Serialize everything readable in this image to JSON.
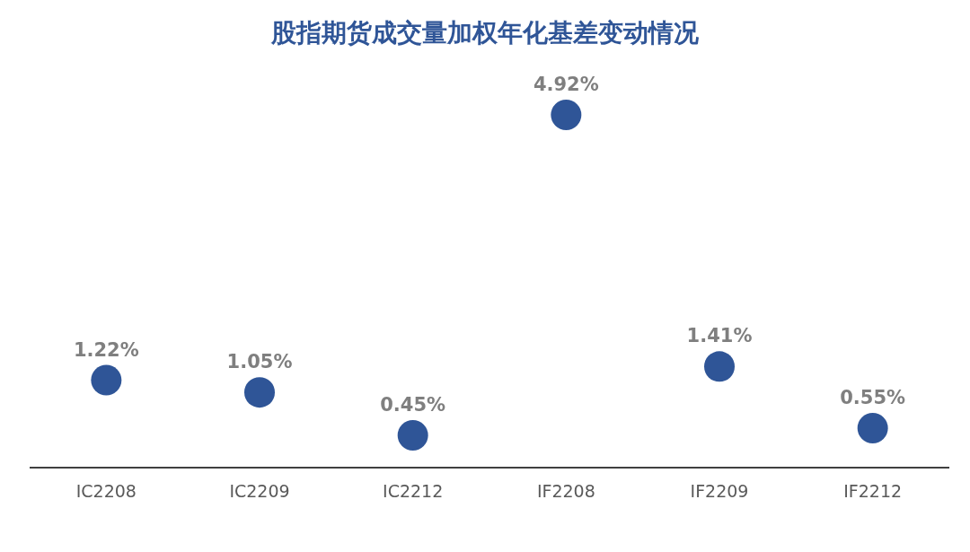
{
  "chart_data": {
    "type": "scatter",
    "title": "股指期货成交量加权年化基差变动情况",
    "categories": [
      "IC2208",
      "IC2209",
      "IC2212",
      "IF2208",
      "IF2209",
      "IF2212"
    ],
    "values": [
      1.22,
      1.05,
      0.45,
      4.92,
      1.41,
      0.55
    ],
    "value_labels": [
      "1.22%",
      "1.05%",
      "0.45%",
      "4.92%",
      "1.41%",
      "0.55%"
    ],
    "color": "#2f5597",
    "marker": "circle",
    "grid": false,
    "tick_labels": "x"
  }
}
